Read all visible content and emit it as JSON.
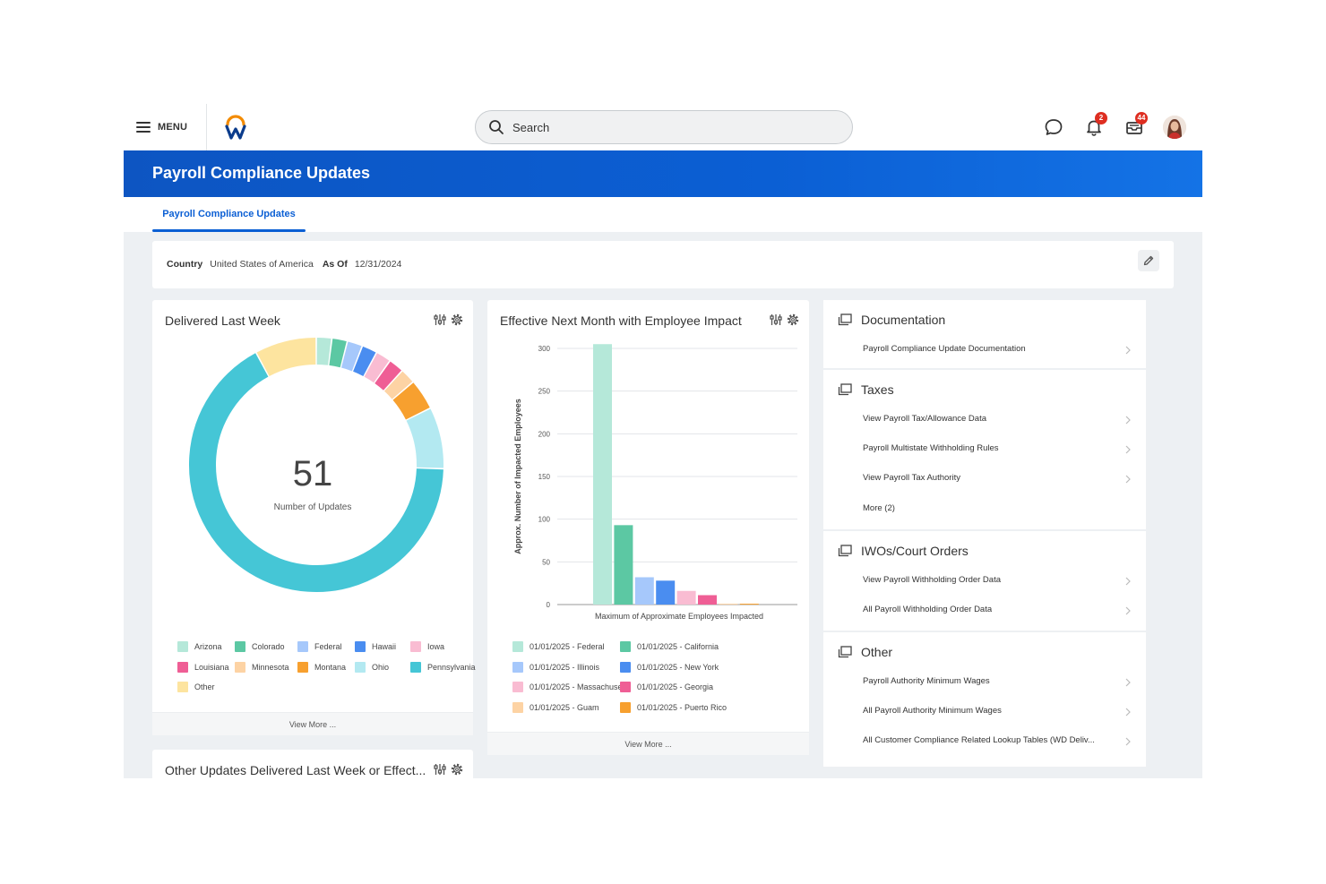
{
  "topbar": {
    "menu_label": "MENU",
    "search_placeholder": "Search",
    "notification_count": "2",
    "inbox_count": "44"
  },
  "header": {
    "title": "Payroll Compliance Updates"
  },
  "tabs": [
    {
      "label": "Payroll Compliance Updates",
      "active": true
    }
  ],
  "filter": {
    "country_label": "Country",
    "country_value": "United States of America",
    "asof_label": "As Of",
    "asof_value": "12/31/2024"
  },
  "delivered_card": {
    "title": "Delivered Last Week",
    "total": "51",
    "total_label": "Number of Updates",
    "view_more": "View More ...",
    "legend": [
      "Arizona",
      "Colorado",
      "Federal",
      "Hawaii",
      "Iowa",
      "Louisiana",
      "Minnesota",
      "Montana",
      "Ohio",
      "Pennsylvania",
      "Other"
    ]
  },
  "impact_card": {
    "title": "Effective Next Month with Employee Impact",
    "view_more": "View More ..."
  },
  "other_card": {
    "title": "Other Updates Delivered Last Week or Effect..."
  },
  "chart_data": [
    {
      "type": "pie",
      "title": "Delivered Last Week",
      "center_value": 51,
      "center_label": "Number of Updates",
      "categories": [
        "Arizona",
        "Colorado",
        "Federal",
        "Hawaii",
        "Iowa",
        "Louisiana",
        "Minnesota",
        "Montana",
        "Ohio",
        "Pennsylvania",
        "Other"
      ],
      "values": [
        1,
        1,
        1,
        1,
        1,
        1,
        1,
        2,
        4,
        34,
        4
      ],
      "colors": [
        "#b5e8d9",
        "#5cc8a3",
        "#a6c8fb",
        "#4a8df0",
        "#f9bcd2",
        "#ef5e95",
        "#fdd3a4",
        "#f7a02f",
        "#b3e9f1",
        "#45c6d6",
        "#fde49f"
      ],
      "legend_position": "bottom"
    },
    {
      "type": "bar",
      "title": "Effective Next Month with Employee Impact",
      "xlabel": "Maximum of Approximate Employees Impacted",
      "ylabel": "Approx. Number of Impacted Employees",
      "ylim": [
        0,
        300
      ],
      "yticks": [
        0,
        50,
        100,
        150,
        200,
        250,
        300
      ],
      "grid": true,
      "series": [
        {
          "name": "01/01/2025 - Federal",
          "value": 305,
          "color": "#b5e8d9"
        },
        {
          "name": "01/01/2025 - California",
          "value": 93,
          "color": "#5cc8a3"
        },
        {
          "name": "01/01/2025 - Illinois",
          "value": 32,
          "color": "#a6c8fb"
        },
        {
          "name": "01/01/2025 - New York",
          "value": 28,
          "color": "#4a8df0"
        },
        {
          "name": "01/01/2025 - Massachusetts",
          "value": 16,
          "color": "#f9bcd2"
        },
        {
          "name": "01/01/2025 - Georgia",
          "value": 11,
          "color": "#ef5e95"
        },
        {
          "name": "01/01/2025 - Guam",
          "value": 1,
          "color": "#fdd3a4"
        },
        {
          "name": "01/01/2025 - Puerto Rico",
          "value": 1,
          "color": "#f7a02f"
        }
      ],
      "legend_position": "bottom"
    }
  ],
  "sections": [
    {
      "title": "Documentation",
      "links": [
        "Payroll Compliance Update Documentation"
      ]
    },
    {
      "title": "Taxes",
      "links": [
        "View Payroll Tax/Allowance Data",
        "Payroll Multistate Withholding Rules",
        "View Payroll Tax Authority",
        "More (2)"
      ]
    },
    {
      "title": "IWOs/Court Orders",
      "links": [
        "View Payroll Withholding Order Data",
        "All Payroll Withholding Order Data"
      ]
    },
    {
      "title": "Other",
      "links": [
        "Payroll Authority Minimum Wages",
        "All Payroll Authority Minimum Wages",
        "All Customer Compliance Related Lookup Tables (WD Deliv..."
      ]
    }
  ]
}
